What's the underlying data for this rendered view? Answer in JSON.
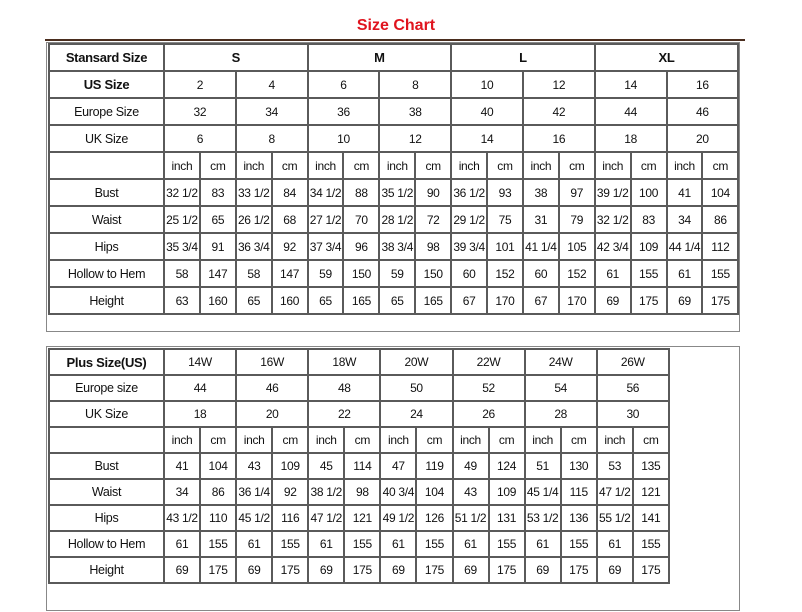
{
  "title": "Size Chart",
  "colors": {
    "title": "#e0141e",
    "rule": "#4a2d1e",
    "grid": "#5a5a5a"
  },
  "standard": {
    "header_label": "Stansard Size",
    "groups": [
      "S",
      "M",
      "L",
      "XL"
    ],
    "size_rows": [
      {
        "label": "US Size",
        "values": [
          "2",
          "4",
          "6",
          "8",
          "10",
          "12",
          "14",
          "16"
        ]
      },
      {
        "label": "Europe Size",
        "values": [
          "32",
          "34",
          "36",
          "38",
          "40",
          "42",
          "44",
          "46"
        ]
      },
      {
        "label": "UK Size",
        "values": [
          "6",
          "8",
          "10",
          "12",
          "14",
          "16",
          "18",
          "20"
        ]
      }
    ],
    "units": [
      "inch",
      "cm",
      "inch",
      "cm",
      "inch",
      "cm",
      "inch",
      "cm",
      "inch",
      "cm",
      "inch",
      "cm",
      "inch",
      "cm",
      "inch",
      "cm"
    ],
    "measure_rows": [
      {
        "label": "Bust",
        "values": [
          "32 1/2",
          "83",
          "33 1/2",
          "84",
          "34 1/2",
          "88",
          "35 1/2",
          "90",
          "36 1/2",
          "93",
          "38",
          "97",
          "39 1/2",
          "100",
          "41",
          "104"
        ]
      },
      {
        "label": "Waist",
        "values": [
          "25 1/2",
          "65",
          "26 1/2",
          "68",
          "27 1/2",
          "70",
          "28 1/2",
          "72",
          "29 1/2",
          "75",
          "31",
          "79",
          "32 1/2",
          "83",
          "34",
          "86"
        ]
      },
      {
        "label": "Hips",
        "values": [
          "35 3/4",
          "91",
          "36 3/4",
          "92",
          "37 3/4",
          "96",
          "38 3/4",
          "98",
          "39 3/4",
          "101",
          "41 1/4",
          "105",
          "42 3/4",
          "109",
          "44 1/4",
          "112"
        ]
      },
      {
        "label": "Hollow to Hem",
        "values": [
          "58",
          "147",
          "58",
          "147",
          "59",
          "150",
          "59",
          "150",
          "60",
          "152",
          "60",
          "152",
          "61",
          "155",
          "61",
          "155"
        ]
      },
      {
        "label": "Height",
        "values": [
          "63",
          "160",
          "65",
          "160",
          "65",
          "165",
          "65",
          "165",
          "67",
          "170",
          "67",
          "170",
          "69",
          "175",
          "69",
          "175"
        ]
      }
    ]
  },
  "plus": {
    "size_rows": [
      {
        "label": "Plus Size(US)",
        "values": [
          "14W",
          "16W",
          "18W",
          "20W",
          "22W",
          "24W",
          "26W"
        ]
      },
      {
        "label": "Europe size",
        "values": [
          "44",
          "46",
          "48",
          "50",
          "52",
          "54",
          "56"
        ]
      },
      {
        "label": "UK Size",
        "values": [
          "18",
          "20",
          "22",
          "24",
          "26",
          "28",
          "30"
        ]
      }
    ],
    "units": [
      "inch",
      "cm",
      "inch",
      "cm",
      "inch",
      "cm",
      "inch",
      "cm",
      "inch",
      "cm",
      "inch",
      "cm",
      "inch",
      "cm"
    ],
    "measure_rows": [
      {
        "label": "Bust",
        "values": [
          "41",
          "104",
          "43",
          "109",
          "45",
          "114",
          "47",
          "119",
          "49",
          "124",
          "51",
          "130",
          "53",
          "135"
        ]
      },
      {
        "label": "Waist",
        "values": [
          "34",
          "86",
          "36 1/4",
          "92",
          "38 1/2",
          "98",
          "40 3/4",
          "104",
          "43",
          "109",
          "45 1/4",
          "115",
          "47 1/2",
          "121"
        ]
      },
      {
        "label": "Hips",
        "values": [
          "43 1/2",
          "110",
          "45 1/2",
          "116",
          "47 1/2",
          "121",
          "49 1/2",
          "126",
          "51 1/2",
          "131",
          "53 1/2",
          "136",
          "55 1/2",
          "141"
        ]
      },
      {
        "label": "Hollow to Hem",
        "values": [
          "61",
          "155",
          "61",
          "155",
          "61",
          "155",
          "61",
          "155",
          "61",
          "155",
          "61",
          "155",
          "61",
          "155"
        ]
      },
      {
        "label": "Height",
        "values": [
          "69",
          "175",
          "69",
          "175",
          "69",
          "175",
          "69",
          "175",
          "69",
          "175",
          "69",
          "175",
          "69",
          "175"
        ]
      }
    ]
  }
}
